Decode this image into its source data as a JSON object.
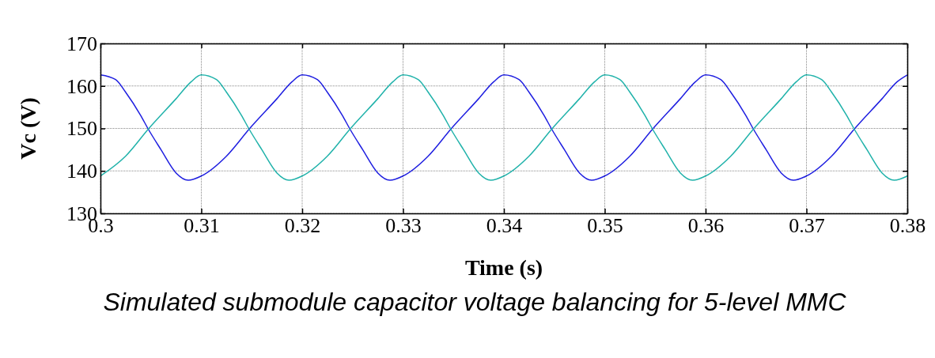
{
  "chart_data": {
    "type": "line",
    "xlabel": "Time (s)",
    "ylabel": "Vc (V)",
    "annotations": [
      "Simulated submodule capacitor voltage balancing for 5-level MMC"
    ],
    "xlim": [
      0.3,
      0.38
    ],
    "xticks": [
      0.3,
      0.31,
      0.32,
      0.33,
      0.34,
      0.35,
      0.36,
      0.37,
      0.38
    ],
    "ylim": [
      130,
      170
    ],
    "yticks": [
      130,
      140,
      150,
      160,
      170
    ],
    "grid": true,
    "line_style": "solid",
    "series": [
      {
        "color": "#1f1fe0",
        "x": [
          0.3,
          0.3015,
          0.3025,
          0.304,
          0.3047,
          0.306,
          0.3075,
          0.3087,
          0.31,
          0.3125,
          0.3148,
          0.3175,
          0.319,
          0.32,
          0.3215,
          0.3225,
          0.324,
          0.3247,
          0.326,
          0.3275,
          0.3287,
          0.33,
          0.3325,
          0.3348,
          0.3375,
          0.339,
          0.34,
          0.3415,
          0.3425,
          0.344,
          0.3447,
          0.346,
          0.3475,
          0.3487,
          0.35,
          0.3525,
          0.3548,
          0.3575,
          0.359,
          0.36,
          0.3615,
          0.3625,
          0.364,
          0.3647,
          0.366,
          0.3675,
          0.3687,
          0.37,
          0.3725,
          0.3748,
          0.3775,
          0.379,
          0.38
        ],
        "values": [
          162.6,
          161.5,
          158.5,
          153,
          150,
          145,
          139.5,
          137.8,
          138.8,
          143.5,
          150,
          157,
          161,
          162.6,
          161.5,
          158.5,
          153,
          150,
          145,
          139.5,
          137.8,
          138.8,
          143.5,
          150,
          157,
          161,
          162.6,
          161.5,
          158.5,
          153,
          150,
          145,
          139.5,
          137.8,
          138.8,
          143.5,
          150,
          157,
          161,
          162.6,
          161.5,
          158.5,
          153,
          150,
          145,
          139.5,
          137.8,
          138.8,
          143.5,
          150,
          157,
          161,
          162.6
        ]
      },
      {
        "color": "#20b2aa",
        "x": [
          0.3,
          0.3025,
          0.3048,
          0.3075,
          0.309,
          0.31,
          0.3115,
          0.3125,
          0.314,
          0.3147,
          0.316,
          0.3175,
          0.3187,
          0.32,
          0.3225,
          0.3248,
          0.3275,
          0.329,
          0.33,
          0.3315,
          0.3325,
          0.334,
          0.3347,
          0.336,
          0.3375,
          0.3387,
          0.34,
          0.3425,
          0.3448,
          0.3475,
          0.349,
          0.35,
          0.3515,
          0.3525,
          0.354,
          0.3547,
          0.356,
          0.3575,
          0.3587,
          0.36,
          0.3625,
          0.3648,
          0.3675,
          0.369,
          0.37,
          0.3715,
          0.3725,
          0.374,
          0.3747,
          0.376,
          0.3775,
          0.3787,
          0.38
        ],
        "values": [
          138.8,
          143.5,
          150,
          157,
          161,
          162.6,
          161.5,
          158.5,
          153,
          150,
          145,
          139.5,
          137.8,
          138.8,
          143.5,
          150,
          157,
          161,
          162.6,
          161.5,
          158.5,
          153,
          150,
          145,
          139.5,
          137.8,
          138.8,
          143.5,
          150,
          157,
          161,
          162.6,
          161.5,
          158.5,
          153,
          150,
          145,
          139.5,
          137.8,
          138.8,
          143.5,
          150,
          157,
          161,
          162.6,
          161.5,
          158.5,
          153,
          150,
          145,
          139.5,
          137.8,
          138.8
        ]
      }
    ]
  }
}
